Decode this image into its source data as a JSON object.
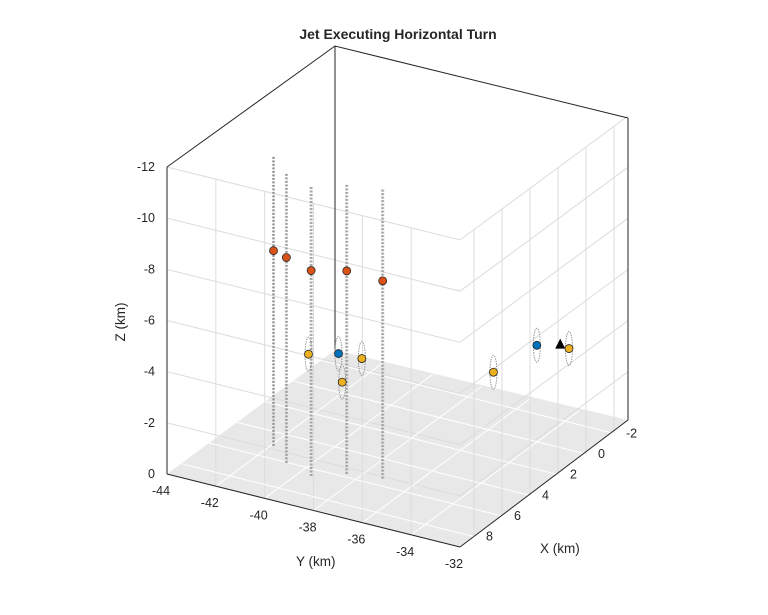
{
  "chart_data": {
    "type": "scatter3d",
    "title": "Jet Executing Horizontal Turn",
    "xlabel": "X (km)",
    "ylabel": "Y (km)",
    "zlabel": "Z (km)",
    "xlim": [
      -3,
      9
    ],
    "ylim": [
      -44,
      -32
    ],
    "zlim": [
      0,
      -12
    ],
    "xticks": [
      -2,
      0,
      2,
      4,
      6,
      8
    ],
    "yticks": [
      -44,
      -42,
      -40,
      -38,
      -36,
      -34,
      -32
    ],
    "zticks": [
      0,
      -2,
      -4,
      -6,
      -8,
      -10,
      -12
    ],
    "grid": true,
    "floor_color": "#e8e8e8",
    "series": [
      {
        "marker": "triangle",
        "color": "#000000",
        "points": [
          [
            -0.6,
            -33.4,
            -3.7
          ]
        ]
      },
      {
        "marker": "circle",
        "color": "#0072bd",
        "points": [
          [
            4.6,
            -39.5,
            -4.0
          ],
          [
            -0.5,
            -34.3,
            -3.5
          ]
        ]
      },
      {
        "marker": "circle",
        "color": "#edb120",
        "points": [
          [
            5.0,
            -40.5,
            -3.9
          ],
          [
            3.8,
            -39.0,
            -3.6
          ],
          [
            6.6,
            -38.2,
            -4.0
          ],
          [
            2.6,
            -34.3,
            -3.7
          ],
          [
            -1.4,
            -33.5,
            -3.2
          ]
        ]
      },
      {
        "marker": "circle",
        "color": "#d95319",
        "points": [
          [
            6.1,
            -41.3,
            -8.2
          ],
          [
            7.1,
            -40.2,
            -8.6
          ],
          [
            7.6,
            -38.9,
            -8.6
          ],
          [
            6.8,
            -37.9,
            -8.5
          ],
          [
            6.5,
            -36.6,
            -8.3
          ]
        ]
      }
    ]
  }
}
